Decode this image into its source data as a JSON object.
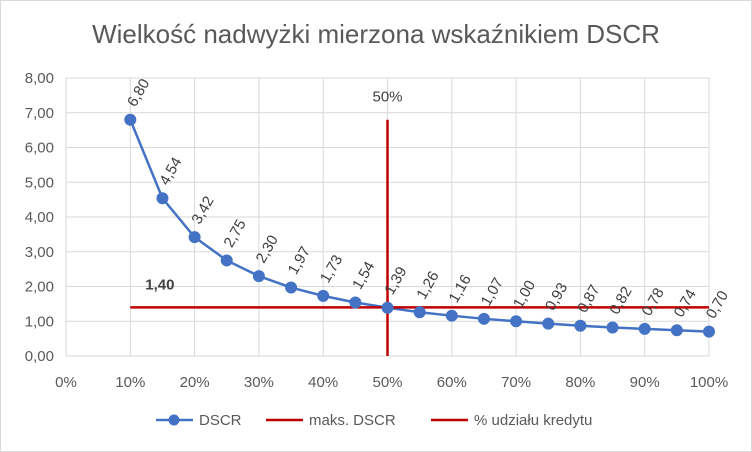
{
  "chart_data": {
    "type": "line",
    "title": "Wielkość nadwyżki mierzona wskaźnikiem DSCR",
    "x": [
      "10%",
      "15%",
      "20%",
      "25%",
      "30%",
      "35%",
      "40%",
      "45%",
      "50%",
      "55%",
      "60%",
      "65%",
      "70%",
      "75%",
      "80%",
      "85%",
      "90%",
      "95%",
      "100%"
    ],
    "x_values": [
      0.1,
      0.15,
      0.2,
      0.25,
      0.3,
      0.35,
      0.4,
      0.45,
      0.5,
      0.55,
      0.6,
      0.65,
      0.7,
      0.75,
      0.8,
      0.85,
      0.9,
      0.95,
      1.0
    ],
    "series": [
      {
        "name": "DSCR",
        "color": "#4472c4",
        "values": [
          6.8,
          4.54,
          3.42,
          2.75,
          2.3,
          1.97,
          1.73,
          1.54,
          1.39,
          1.26,
          1.16,
          1.07,
          1.0,
          0.93,
          0.87,
          0.82,
          0.78,
          0.74,
          0.7
        ],
        "data_labels": [
          "6,80",
          "4,54",
          "3,42",
          "2,75",
          "2,30",
          "1,97",
          "1,73",
          "1,54",
          "1,39",
          "1,26",
          "1,16",
          "1,07",
          "1,00",
          "0,93",
          "0,87",
          "0,82",
          "0,78",
          "0,74",
          "0,70"
        ]
      },
      {
        "name": "maks. DSCR",
        "color": "#c00000",
        "value": 1.4,
        "x_range": [
          0.1,
          1.0
        ],
        "label": "1,40"
      },
      {
        "name": "% udziału kredytu",
        "color": "#c00000",
        "x": 0.5,
        "y_range": [
          0,
          6.8
        ],
        "label": "50%"
      }
    ],
    "xlim": [
      0,
      1.0
    ],
    "ylim": [
      0,
      8
    ],
    "x_ticks": [
      "0%",
      "10%",
      "20%",
      "30%",
      "40%",
      "50%",
      "60%",
      "70%",
      "80%",
      "90%",
      "100%"
    ],
    "y_ticks": [
      "0,00",
      "1,00",
      "2,00",
      "3,00",
      "4,00",
      "5,00",
      "6,00",
      "7,00",
      "8,00"
    ],
    "grid": "vertical and horizontal",
    "legend_position": "bottom"
  }
}
